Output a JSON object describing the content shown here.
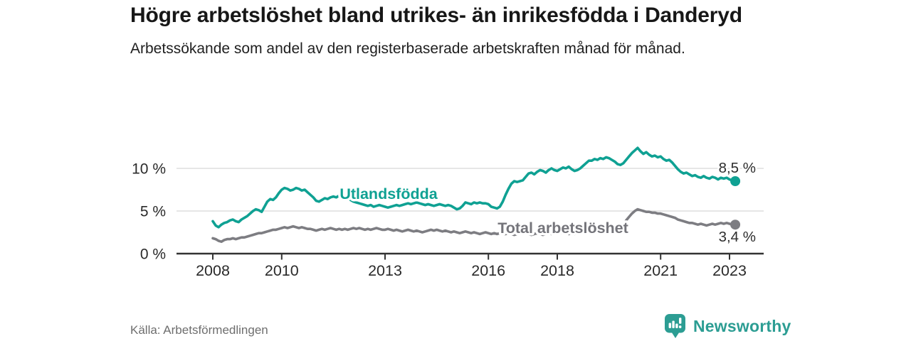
{
  "title": "Högre arbetslöshet bland utrikes- än inrikesfödda i Danderyd",
  "subtitle": "Arbetssökande som andel av den registerbaserade arbetskraften månad för månad.",
  "source": "Källa: Arbetsförmedlingen",
  "brand": {
    "name": "Newsworthy",
    "color": "#2c9d93",
    "icon": "bar-chart-bubble-icon"
  },
  "chart_data": {
    "type": "line",
    "grid": "horizontal",
    "legend_position": "inline-labels",
    "x_unit": "month",
    "x_start": "2008-01",
    "x_end": "2023-03",
    "x_ticks": [
      2008,
      2010,
      2013,
      2016,
      2018,
      2021,
      2023
    ],
    "y_ticks": [
      {
        "value": 0,
        "label": "0 %"
      },
      {
        "value": 5,
        "label": "5 %"
      },
      {
        "value": 10,
        "label": "10 %"
      }
    ],
    "ylim": [
      0,
      13.5
    ],
    "colors": {
      "grid": "#d8d8d8",
      "axis": "#333333",
      "tick_label": "#2a2a2a",
      "end_label": "#2d2d2d"
    },
    "series": [
      {
        "id": "utlandsfodda",
        "name": "Utlandsfödda",
        "color": "#0FA193",
        "label_color": "#0FA193",
        "end_label": "8,5 %",
        "end_value": 8.5,
        "values": [
          3.8,
          3.3,
          3.1,
          3.4,
          3.6,
          3.7,
          3.9,
          4.0,
          3.8,
          3.7,
          4.0,
          4.2,
          4.4,
          4.7,
          5.0,
          5.2,
          5.1,
          4.9,
          5.5,
          6.1,
          6.4,
          6.3,
          6.6,
          7.1,
          7.5,
          7.7,
          7.6,
          7.4,
          7.5,
          7.7,
          7.6,
          7.4,
          7.5,
          7.2,
          6.9,
          6.6,
          6.2,
          6.1,
          6.3,
          6.5,
          6.4,
          6.6,
          6.7,
          6.6,
          6.8,
          6.7,
          6.6,
          6.5,
          6.3,
          6.1,
          6.0,
          5.9,
          5.8,
          5.7,
          5.6,
          5.7,
          5.5,
          5.6,
          5.7,
          5.6,
          5.5,
          5.4,
          5.5,
          5.6,
          5.7,
          5.6,
          5.7,
          5.8,
          5.9,
          5.8,
          5.9,
          6.0,
          5.9,
          5.8,
          5.7,
          5.8,
          5.7,
          5.6,
          5.7,
          5.8,
          5.7,
          5.6,
          5.7,
          5.6,
          5.4,
          5.2,
          5.3,
          5.6,
          6.0,
          5.9,
          5.8,
          6.0,
          5.9,
          6.0,
          5.9,
          5.9,
          5.8,
          5.5,
          5.4,
          5.3,
          5.5,
          6.1,
          6.9,
          7.6,
          8.2,
          8.5,
          8.4,
          8.5,
          8.6,
          9.0,
          9.4,
          9.5,
          9.3,
          9.6,
          9.8,
          9.7,
          9.5,
          9.8,
          10.0,
          9.8,
          9.7,
          9.9,
          10.1,
          10.0,
          10.2,
          9.9,
          9.7,
          9.8,
          10.0,
          10.3,
          10.6,
          10.9,
          10.9,
          11.1,
          11.0,
          11.2,
          11.1,
          11.3,
          11.2,
          11.0,
          10.8,
          10.5,
          10.4,
          10.6,
          11.0,
          11.4,
          11.8,
          12.1,
          12.4,
          12.0,
          11.7,
          11.9,
          11.6,
          11.4,
          11.5,
          11.3,
          11.4,
          11.1,
          10.9,
          11.0,
          10.7,
          10.3,
          9.9,
          9.6,
          9.4,
          9.5,
          9.3,
          9.1,
          9.2,
          9.0,
          8.9,
          9.1,
          8.9,
          8.8,
          9.0,
          8.9,
          8.7,
          8.9,
          8.8,
          8.9,
          8.7,
          8.6,
          8.5
        ]
      },
      {
        "id": "total",
        "name": "Total arbetslöshet",
        "color": "#7d7d82",
        "label_color": "#74747a",
        "end_label": "3,4 %",
        "end_value": 3.4,
        "values": [
          1.8,
          1.7,
          1.5,
          1.4,
          1.6,
          1.7,
          1.7,
          1.8,
          1.7,
          1.8,
          1.9,
          1.9,
          2.0,
          2.1,
          2.2,
          2.3,
          2.4,
          2.4,
          2.5,
          2.6,
          2.7,
          2.8,
          2.8,
          2.9,
          3.0,
          3.1,
          3.0,
          3.1,
          3.2,
          3.1,
          3.0,
          3.1,
          3.0,
          2.9,
          2.9,
          2.8,
          2.7,
          2.8,
          2.9,
          2.8,
          2.9,
          3.0,
          2.9,
          2.8,
          2.9,
          2.8,
          2.9,
          2.8,
          2.9,
          3.0,
          2.9,
          3.0,
          2.9,
          2.8,
          2.9,
          2.8,
          2.9,
          3.0,
          2.9,
          2.8,
          2.8,
          2.9,
          2.8,
          2.7,
          2.8,
          2.7,
          2.6,
          2.7,
          2.8,
          2.7,
          2.6,
          2.7,
          2.6,
          2.5,
          2.6,
          2.7,
          2.8,
          2.7,
          2.8,
          2.7,
          2.6,
          2.7,
          2.6,
          2.5,
          2.6,
          2.5,
          2.4,
          2.5,
          2.6,
          2.5,
          2.4,
          2.5,
          2.4,
          2.3,
          2.4,
          2.5,
          2.4,
          2.3,
          2.4,
          2.3,
          2.4,
          2.3,
          2.3,
          2.4,
          2.3,
          2.2,
          2.3,
          2.4,
          2.3,
          2.4,
          2.3,
          2.2,
          2.3,
          2.4,
          2.3,
          2.2,
          2.3,
          2.4,
          2.3,
          2.4,
          2.3,
          2.4,
          2.5,
          2.4,
          2.3,
          2.4,
          2.3,
          2.4,
          2.5,
          2.4,
          2.5,
          2.4,
          2.5,
          2.4,
          2.5,
          2.6,
          2.5,
          2.6,
          2.7,
          2.6,
          2.7,
          2.8,
          3.0,
          3.4,
          3.9,
          4.3,
          4.7,
          5.0,
          5.2,
          5.1,
          5.0,
          4.9,
          4.9,
          4.8,
          4.8,
          4.7,
          4.7,
          4.6,
          4.5,
          4.4,
          4.3,
          4.2,
          4.0,
          3.9,
          3.8,
          3.7,
          3.6,
          3.6,
          3.5,
          3.4,
          3.5,
          3.4,
          3.3,
          3.4,
          3.5,
          3.4,
          3.5,
          3.6,
          3.5,
          3.6,
          3.5,
          3.4,
          3.4
        ]
      }
    ]
  }
}
